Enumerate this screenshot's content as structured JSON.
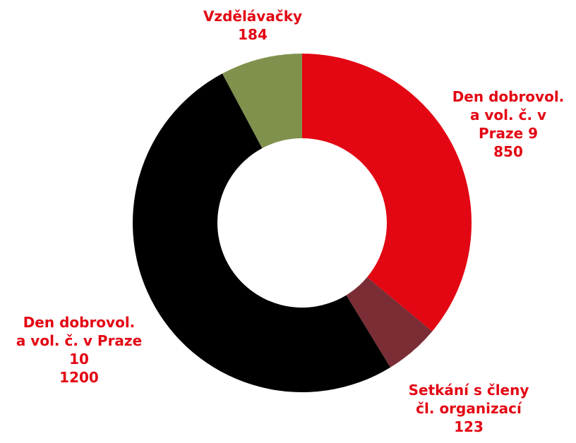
{
  "chart_data": {
    "type": "donut",
    "categories": [
      "Den dobrovol.\na vol. č. v\nPraze 9",
      "Setkání s členy\nčl. organizací",
      "Den dobrovol.\na vol. č. v Praze\n10",
      "Vzdělávačky"
    ],
    "values": [
      850,
      123,
      1200,
      184
    ],
    "colors": [
      "#e30613",
      "#7b2d35",
      "#000000",
      "#7f914c"
    ]
  }
}
